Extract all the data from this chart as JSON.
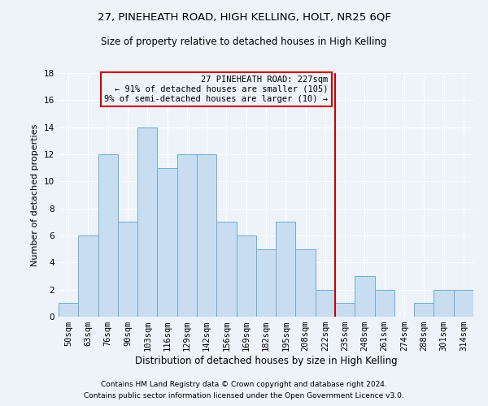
{
  "title1": "27, PINEHEATH ROAD, HIGH KELLING, HOLT, NR25 6QF",
  "title2": "Size of property relative to detached houses in High Kelling",
  "xlabel": "Distribution of detached houses by size in High Kelling",
  "ylabel": "Number of detached properties",
  "footer1": "Contains HM Land Registry data © Crown copyright and database right 2024.",
  "footer2": "Contains public sector information licensed under the Open Government Licence v3.0.",
  "bin_labels": [
    "50sqm",
    "63sqm",
    "76sqm",
    "90sqm",
    "103sqm",
    "116sqm",
    "129sqm",
    "142sqm",
    "156sqm",
    "169sqm",
    "182sqm",
    "195sqm",
    "208sqm",
    "222sqm",
    "235sqm",
    "248sqm",
    "261sqm",
    "274sqm",
    "288sqm",
    "301sqm",
    "314sqm"
  ],
  "values": [
    1,
    6,
    12,
    7,
    14,
    11,
    12,
    12,
    7,
    6,
    5,
    7,
    5,
    2,
    1,
    3,
    2,
    0,
    1,
    2,
    2
  ],
  "bar_color": "#c8ddf0",
  "bar_edge_color": "#6aaed6",
  "background_color": "#eef2f9",
  "grid_color": "#ffffff",
  "vline_x_index": 13.5,
  "vline_color": "#cc0000",
  "annotation_text": "27 PINEHEATH ROAD: 227sqm\n← 91% of detached houses are smaller (105)\n9% of semi-detached houses are larger (10) →",
  "annotation_box_edgecolor": "#cc0000",
  "ylim": [
    0,
    18
  ],
  "yticks": [
    0,
    2,
    4,
    6,
    8,
    10,
    12,
    14,
    16,
    18
  ],
  "title1_fontsize": 9.5,
  "title2_fontsize": 8.5,
  "xlabel_fontsize": 8.5,
  "ylabel_fontsize": 8,
  "tick_fontsize": 7.5,
  "annot_fontsize": 7.5,
  "footer_fontsize": 6.5
}
